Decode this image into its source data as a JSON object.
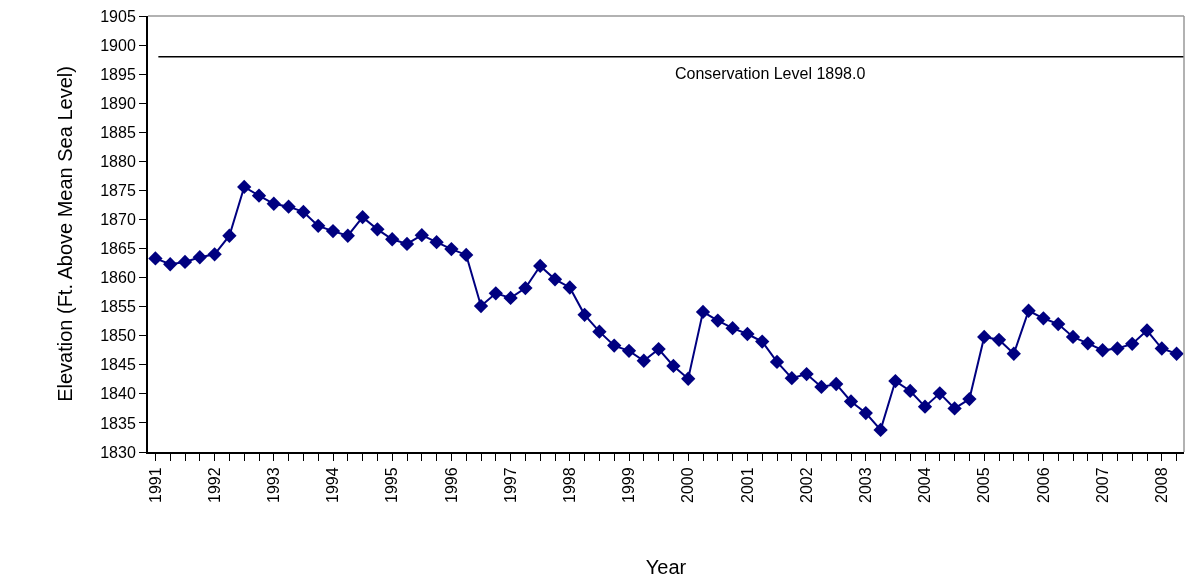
{
  "chart_data": {
    "type": "line",
    "xlabel": "Year",
    "ylabel": "Elevation (Ft. Above Mean Sea Level)",
    "categories": [
      "1991",
      null,
      null,
      null,
      "1992",
      null,
      null,
      null,
      "1993",
      null,
      null,
      null,
      "1994",
      null,
      null,
      null,
      "1995",
      null,
      null,
      null,
      "1996",
      null,
      null,
      null,
      "1997",
      null,
      null,
      null,
      "1998",
      null,
      null,
      null,
      "1999",
      null,
      null,
      null,
      "2000",
      null,
      null,
      null,
      "2001",
      null,
      null,
      null,
      "2002",
      null,
      null,
      null,
      "2003",
      null,
      null,
      null,
      "2004",
      null,
      null,
      null,
      "2005",
      null,
      null,
      null,
      "2006",
      null,
      null,
      null,
      "2007",
      null,
      null,
      null,
      "2008",
      null
    ],
    "series": [
      {
        "color": "#000080",
        "values": [
          1863.3,
          1862.3,
          1862.7,
          1863.5,
          1864.0,
          1867.2,
          1875.6,
          1874.1,
          1872.7,
          1872.2,
          1871.3,
          1868.9,
          1868.0,
          1867.2,
          1870.4,
          1868.3,
          1866.6,
          1865.8,
          1867.3,
          1866.1,
          1864.9,
          1863.9,
          1855.1,
          1857.3,
          1856.5,
          1858.2,
          1862.0,
          1859.7,
          1858.3,
          1853.6,
          1850.7,
          1848.3,
          1847.4,
          1845.7,
          1847.7,
          1844.8,
          1842.6,
          1854.1,
          1852.6,
          1851.3,
          1850.3,
          1849.0,
          1845.5,
          1842.7,
          1843.4,
          1841.2,
          1841.7,
          1838.7,
          1836.7,
          1833.8,
          1842.2,
          1840.5,
          1837.8,
          1840.1,
          1837.5,
          1839.1,
          1849.8,
          1849.3,
          1846.9,
          1854.3,
          1853.0,
          1852.0,
          1849.8,
          1848.7,
          1847.5,
          1847.8,
          1848.6,
          1850.9,
          1847.8,
          1846.9
        ]
      }
    ],
    "ylim": [
      1830,
      1905
    ],
    "yticks": [
      1830,
      1835,
      1840,
      1845,
      1850,
      1855,
      1860,
      1865,
      1870,
      1875,
      1880,
      1885,
      1890,
      1895,
      1900,
      1905
    ],
    "ref_lines": [
      {
        "axis": "y",
        "value": 1898.0,
        "label": "Conservation Level 1898.0",
        "color": "#000000"
      }
    ],
    "marker": "diamond",
    "line_style": "solid"
  }
}
